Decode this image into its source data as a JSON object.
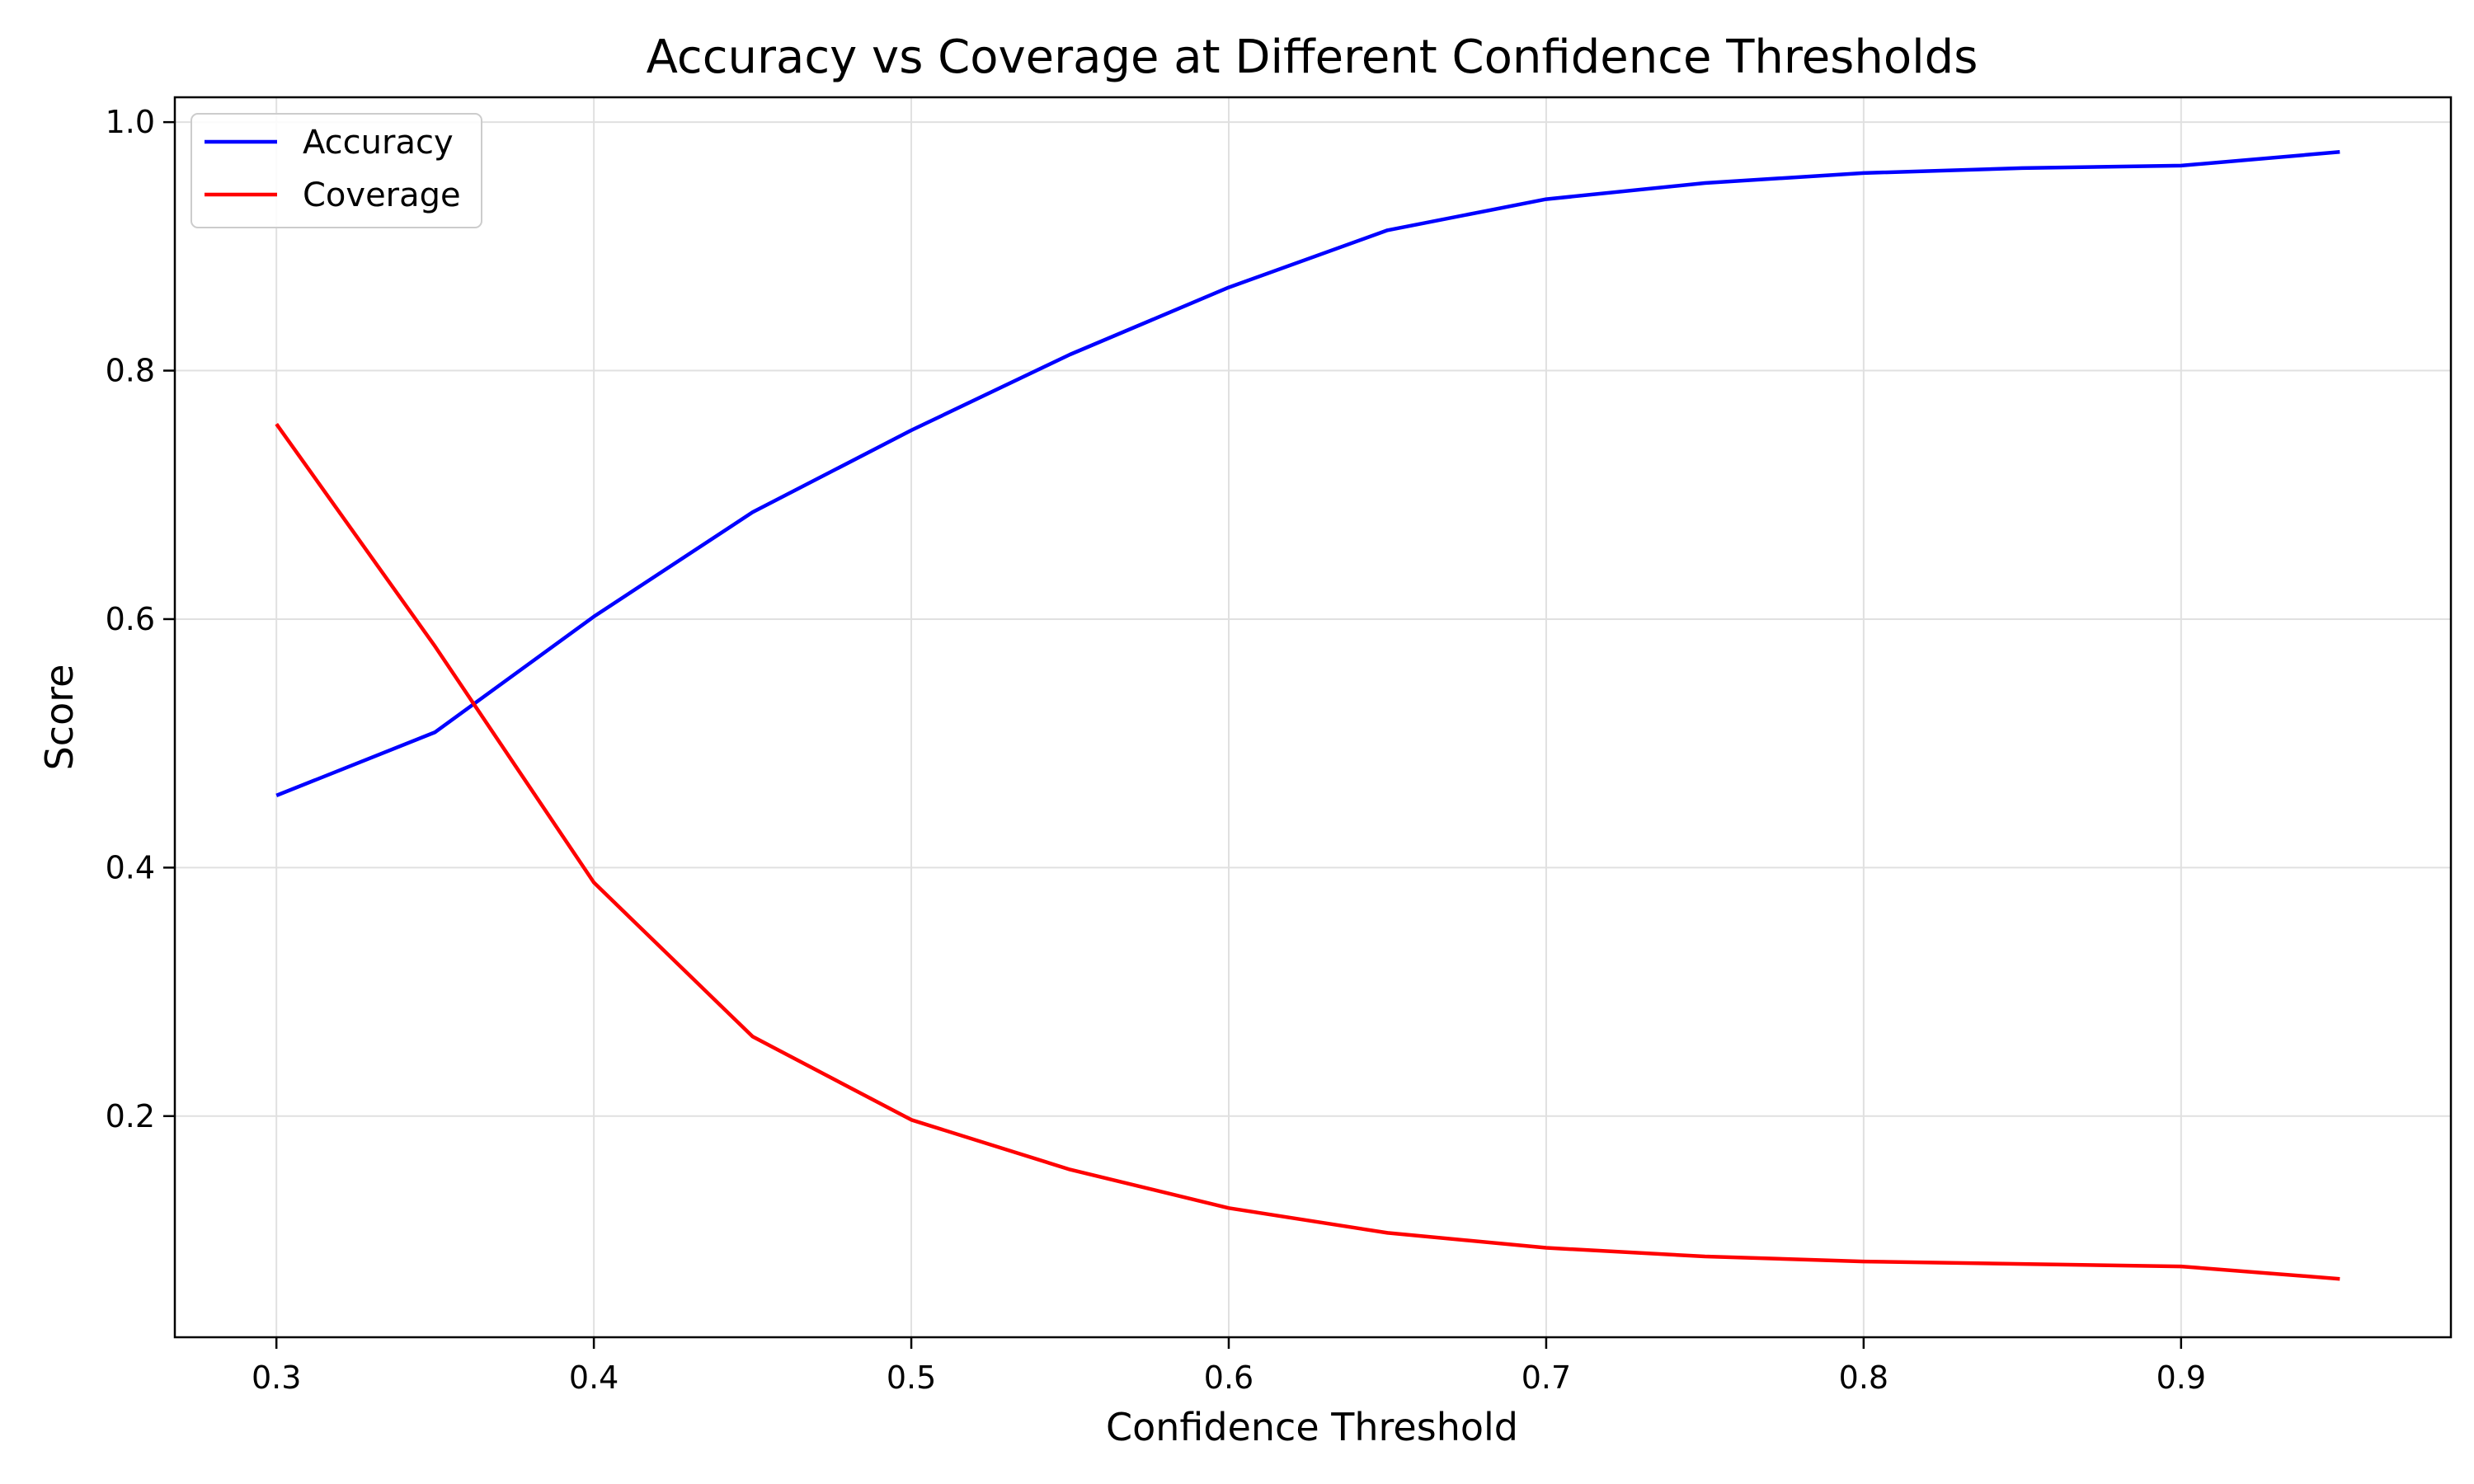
{
  "chart_data": {
    "type": "line",
    "title": "Accuracy vs Coverage at Different Confidence Thresholds",
    "xlabel": "Confidence Threshold",
    "ylabel": "Score",
    "xlim": [
      0.268,
      0.985
    ],
    "ylim": [
      0.022,
      1.02
    ],
    "xticks": [
      0.3,
      0.4,
      0.5,
      0.6,
      0.7,
      0.8,
      0.9
    ],
    "xtick_labels": [
      "0.3",
      "0.4",
      "0.5",
      "0.6",
      "0.7",
      "0.8",
      "0.9"
    ],
    "yticks": [
      0.2,
      0.4,
      0.6,
      0.8,
      1.0
    ],
    "ytick_labels": [
      "0.2",
      "0.4",
      "0.6",
      "0.8",
      "1.0"
    ],
    "grid": true,
    "legend_position": "top-left",
    "x": [
      0.3,
      0.35,
      0.4,
      0.45,
      0.5,
      0.55,
      0.6,
      0.65,
      0.7,
      0.75,
      0.8,
      0.85,
      0.9,
      0.95
    ],
    "series": [
      {
        "name": "Accuracy",
        "color": "#0000ff",
        "values": [
          0.458,
          0.509,
          0.602,
          0.686,
          0.752,
          0.813,
          0.867,
          0.913,
          0.938,
          0.951,
          0.959,
          0.963,
          0.965,
          0.976
        ]
      },
      {
        "name": "Coverage",
        "color": "#ff0000",
        "values": [
          0.757,
          0.578,
          0.388,
          0.264,
          0.197,
          0.157,
          0.126,
          0.106,
          0.094,
          0.087,
          0.083,
          0.081,
          0.079,
          0.069
        ]
      }
    ]
  }
}
